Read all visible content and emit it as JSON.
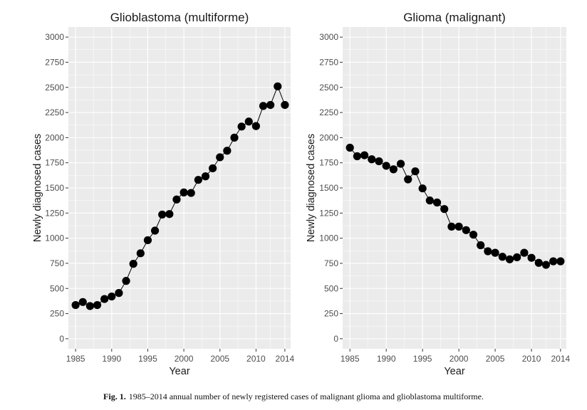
{
  "chart_data": [
    {
      "type": "line",
      "title": "Glioblastoma (multiforme)",
      "xlabel": "Year",
      "ylabel": "Newly diagnosed cases",
      "xlim": [
        1984,
        2014.8
      ],
      "ylim": [
        -100,
        3100
      ],
      "x_ticks": [
        "1985",
        "1990",
        "1995",
        "2000",
        "2005",
        "2010",
        "2014"
      ],
      "y_ticks": [
        "0",
        "250",
        "500",
        "750",
        "1000",
        "1250",
        "1500",
        "1750",
        "2000",
        "2250",
        "2500",
        "2750",
        "3000"
      ],
      "grid": true,
      "x": [
        1985,
        1986,
        1987,
        1988,
        1989,
        1990,
        1991,
        1992,
        1993,
        1994,
        1995,
        1996,
        1997,
        1998,
        1999,
        2000,
        2001,
        2002,
        2003,
        2004,
        2005,
        2006,
        2007,
        2008,
        2009,
        2010,
        2011,
        2012,
        2013,
        2014
      ],
      "values": [
        335,
        365,
        325,
        335,
        395,
        420,
        455,
        575,
        745,
        850,
        980,
        1075,
        1235,
        1240,
        1385,
        1455,
        1450,
        1580,
        1615,
        1695,
        1805,
        1870,
        2000,
        2110,
        2160,
        2115,
        2315,
        2325,
        2510,
        2325
      ]
    },
    {
      "type": "line",
      "title": "Glioma (malignant)",
      "xlabel": "Year",
      "ylabel": "Newly diagnosed cases",
      "xlim": [
        1984,
        2014.8
      ],
      "ylim": [
        -100,
        3100
      ],
      "x_ticks": [
        "1985",
        "1990",
        "1995",
        "2000",
        "2005",
        "2010",
        "2014"
      ],
      "y_ticks": [
        "0",
        "250",
        "500",
        "750",
        "1000",
        "1250",
        "1500",
        "1750",
        "2000",
        "2250",
        "2500",
        "2750",
        "3000"
      ],
      "grid": true,
      "x": [
        1985,
        1986,
        1987,
        1988,
        1989,
        1990,
        1991,
        1992,
        1993,
        1994,
        1995,
        1996,
        1997,
        1998,
        1999,
        2000,
        2001,
        2002,
        2003,
        2004,
        2005,
        2006,
        2007,
        2008,
        2009,
        2010,
        2011,
        2012,
        2013,
        2014
      ],
      "values": [
        1900,
        1815,
        1825,
        1785,
        1765,
        1720,
        1685,
        1740,
        1585,
        1665,
        1495,
        1375,
        1355,
        1290,
        1115,
        1115,
        1080,
        1035,
        930,
        870,
        855,
        815,
        790,
        810,
        855,
        805,
        755,
        735,
        770,
        770
      ]
    }
  ],
  "caption": {
    "label": "Fig. 1.",
    "text": "1985–2014 annual number of newly registered cases of malignant glioma and glioblastoma multiforme."
  },
  "colors": {
    "panel_bg": "#ebebeb",
    "grid": "#ffffff",
    "marker": "#000000"
  }
}
